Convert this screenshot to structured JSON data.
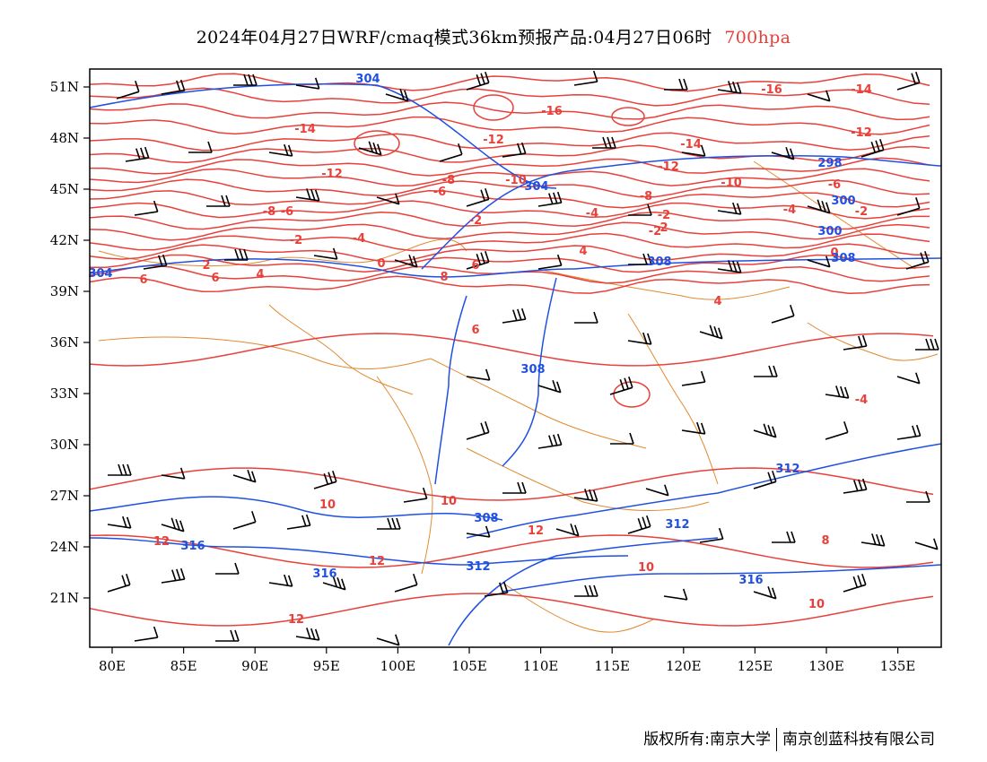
{
  "title": {
    "main": "2024年04月27日WRF/cmaq模式36km预报产品:04月27日06时",
    "level": "700hpa",
    "level_color": "#e8403a"
  },
  "axes": {
    "lon_labels": [
      "80E",
      "85E",
      "90E",
      "95E",
      "100E",
      "105E",
      "110E",
      "115E",
      "120E",
      "125E",
      "130E",
      "135E"
    ],
    "lat_labels": [
      "51N",
      "48N",
      "45N",
      "42N",
      "39N",
      "36N",
      "33N",
      "30N",
      "27N",
      "24N",
      "21N"
    ]
  },
  "colors": {
    "temperature": "#e8403a",
    "geopotential": "#2050e0",
    "boundary": "#e08a30",
    "wind": "#000000"
  },
  "labels": {
    "temperature": [
      "-16",
      "-16",
      "-14",
      "-14",
      "-14",
      "-12",
      "-12",
      "-12",
      "-12",
      "-10",
      "-10",
      "-8",
      "-8",
      "-8",
      "-6",
      "-6",
      "-6",
      "-4",
      "-4",
      "-4",
      "-2",
      "-2",
      "-2",
      "-2",
      "-2",
      "0",
      "0",
      "2",
      "2",
      "4",
      "4",
      "4",
      "6",
      "6",
      "6",
      "6",
      "8",
      "8",
      "10",
      "10",
      "10",
      "10",
      "12",
      "12",
      "12",
      "12",
      "-4"
    ],
    "geopotential": [
      "304",
      "304",
      "304",
      "298",
      "300",
      "300",
      "308",
      "308",
      "308",
      "312",
      "312",
      "316",
      "316",
      "316",
      "308",
      "312"
    ]
  },
  "chart_data": {
    "type": "weather_map",
    "domain": "lon 78E–138E, lat 18N–52N",
    "fields": [
      "temperature (red contours)",
      "geopotential height (blue contours)",
      "wind barbs (black)"
    ]
  },
  "footer": {
    "left": "版权所有:南京大学",
    "right": "南京创蓝科技有限公司"
  }
}
